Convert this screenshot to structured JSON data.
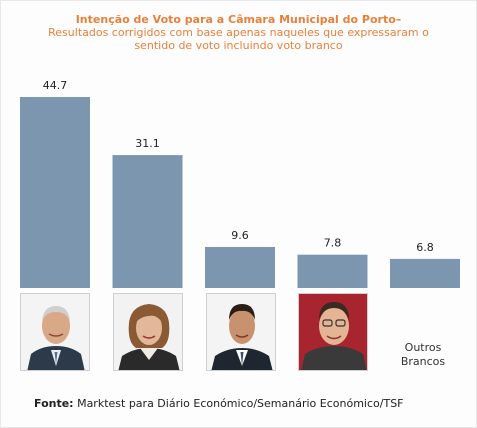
{
  "chart_data": {
    "type": "bar",
    "title": "Intenção de Voto para a Câmara Municipal do Porto–",
    "subtitle_lines": [
      "Resultados corrigidos com base apenas naqueles que expressaram o",
      "sentido de voto incluindo voto branco"
    ],
    "categories": [
      "",
      "",
      "",
      "",
      "Outros Brancos"
    ],
    "values": [
      44.7,
      31.1,
      9.6,
      7.8,
      6.8
    ],
    "value_labels": [
      "44.7",
      "31.1",
      "9.6",
      "7.8",
      "6.8"
    ],
    "ylim": [
      0,
      44.7
    ],
    "grid": false,
    "bar_color": "#7b96ae",
    "title_color": "#e8803a"
  },
  "category_label": [
    "Outros",
    "Brancos"
  ],
  "source": {
    "label": "Fonte:",
    "text": " Marktest para Diário Económico/Semanário Económico/TSF"
  }
}
